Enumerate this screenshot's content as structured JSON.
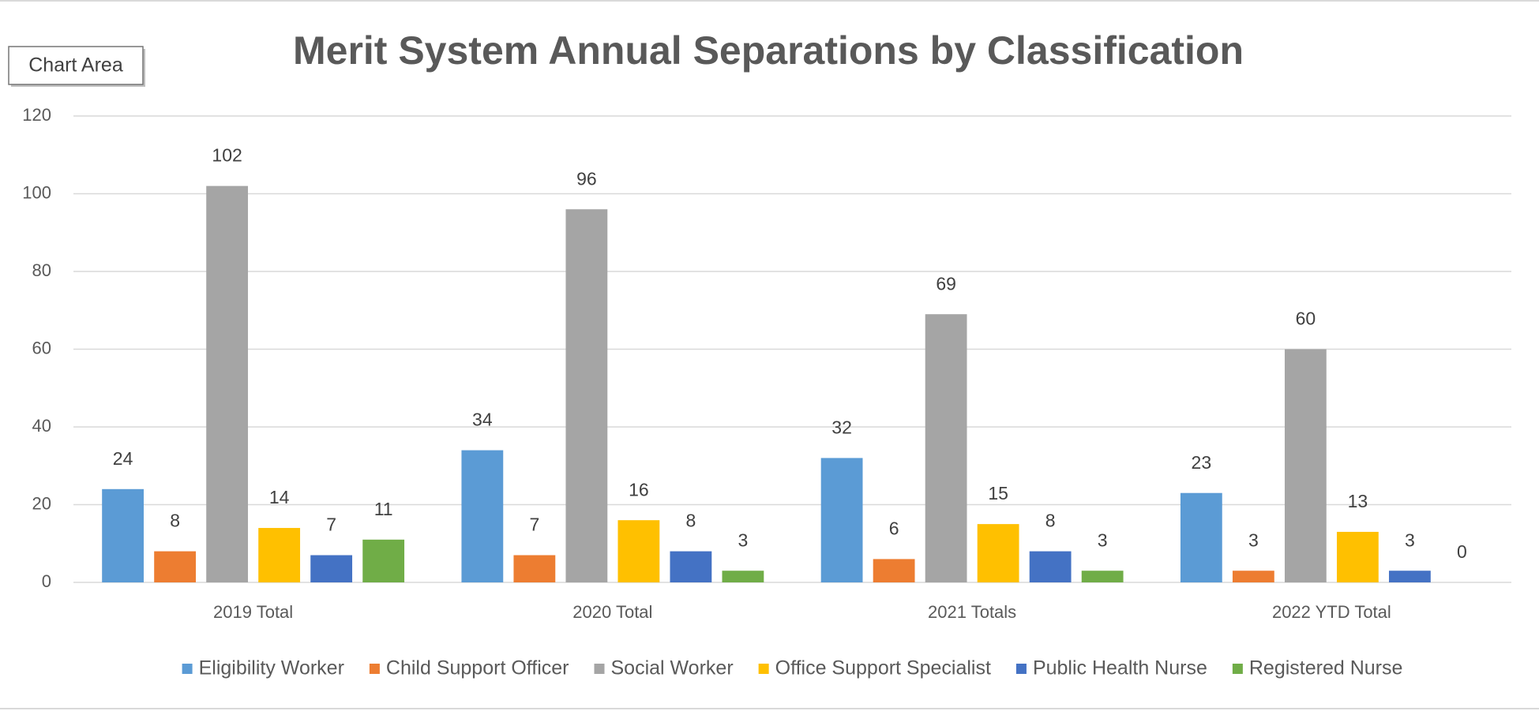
{
  "chart_data": {
    "type": "bar",
    "title": "Merit System Annual Separations by Classification",
    "tooltip": "Chart Area",
    "categories": [
      "2019 Total",
      "2020 Total",
      "2021 Totals",
      "2022 YTD Total"
    ],
    "series": [
      {
        "name": "Eligibility Worker",
        "color": "#5b9bd5",
        "values": [
          24,
          34,
          32,
          23
        ]
      },
      {
        "name": "Child Support Officer",
        "color": "#ed7d31",
        "values": [
          8,
          7,
          6,
          3
        ]
      },
      {
        "name": "Social Worker",
        "color": "#a5a5a5",
        "values": [
          102,
          96,
          69,
          60
        ]
      },
      {
        "name": "Office Support Specialist",
        "color": "#ffc000",
        "values": [
          14,
          16,
          15,
          13
        ]
      },
      {
        "name": "Public Health Nurse",
        "color": "#4472c4",
        "values": [
          7,
          8,
          8,
          3
        ]
      },
      {
        "name": "Registered Nurse",
        "color": "#70ad47",
        "values": [
          11,
          3,
          3,
          0
        ]
      }
    ],
    "ylim": [
      0,
      120
    ],
    "yticks": [
      0,
      20,
      40,
      60,
      80,
      100,
      120
    ],
    "grid": true,
    "legend": "bottom"
  }
}
